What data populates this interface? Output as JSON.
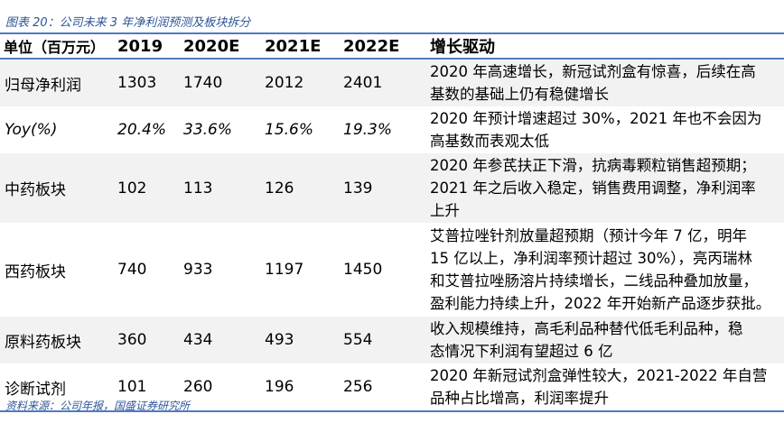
{
  "caption": "图表 20：公司未来 3 年净利润预测及板块拆分",
  "header": [
    "单位（百万元）",
    "2019",
    "2020E",
    "2021E",
    "2022E",
    "增长驱动"
  ],
  "rows": [
    {
      "label": "归母净利润",
      "values": [
        "1303",
        "1740",
        "2012",
        "2401"
      ],
      "italic": false,
      "driver": [
        "2020 年高速增长，新冠试剂盒有惊喜，后续在高",
        "基数的基础上仍有稳健增长"
      ]
    },
    {
      "label": "Yoy(%)",
      "values": [
        "20.4%",
        "33.6%",
        "15.6%",
        "19.3%"
      ],
      "italic": true,
      "driver": [
        "2020 年预计增速超过 30%，2021 年也不会因为",
        "高基数而表观太低"
      ]
    },
    {
      "label": "中药板块",
      "values": [
        "102",
        "113",
        "126",
        "139"
      ],
      "italic": false,
      "driver": [
        "2020 年参芪扶正下滑，抗病毒颗粒销售超预期；",
        "2021 年之后收入稳定，销售费用调整，净利润率",
        "上升"
      ]
    },
    {
      "label": "西药板块",
      "values": [
        "740",
        "933",
        "1197",
        "1450"
      ],
      "italic": false,
      "driver": [
        "艾普拉唑针剂放量超预期（预计今年 7 亿，明年",
        "15 亿以上，净利润率预计超过 30%），亮丙瑞林",
        "和艾普拉唑肠溶片持续增长，二线品种叠加放量，",
        "盈利能力持续上升，2022 年开始新产品逐步获批。"
      ]
    },
    {
      "label": "原料药板块",
      "values": [
        "360",
        "434",
        "493",
        "554"
      ],
      "italic": false,
      "driver": [
        "收入规模维持，高毛利品种替代低毛利品种，稳",
        "态情况下利润有望超过 6 亿"
      ]
    },
    {
      "label": "诊断试剂",
      "values": [
        "101",
        "260",
        "196",
        "256"
      ],
      "italic": false,
      "driver": [
        "2020 年新冠试剂盒弹性较大，2021-2022 年自营",
        "品种占比增高，利润率提升"
      ]
    }
  ],
  "source": "资料来源：公司年报，国盛证券研究所",
  "colors": {
    "rule": "#4f7ac7",
    "caption": "#2e5597",
    "stripe": "#f2f2f2"
  }
}
